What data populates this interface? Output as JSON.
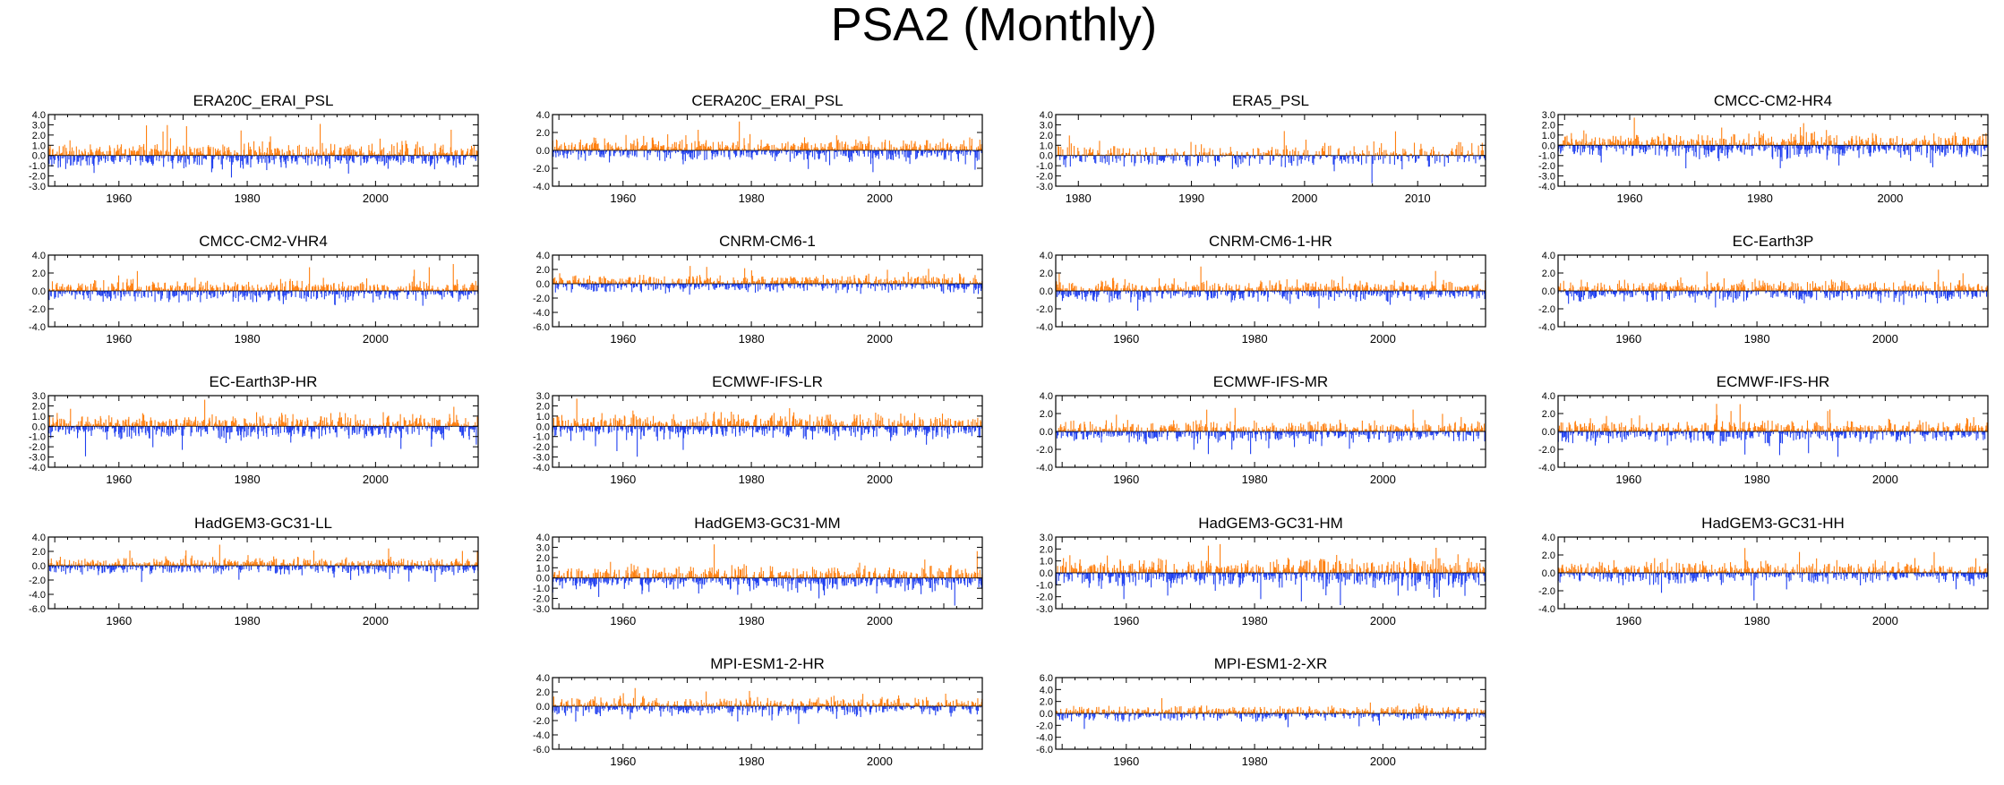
{
  "figure": {
    "title": "PSA2 (Monthly)",
    "colors": {
      "positive": "#ff7f0e",
      "negative": "#1f3ff0"
    }
  },
  "chart_data": [
    {
      "type": "bar",
      "title": "ERA20C_ERAI_PSL",
      "xlim": [
        1949,
        2016
      ],
      "ylim": [
        -3.0,
        4.0
      ],
      "yticks": [
        -3.0,
        -2.0,
        -1.0,
        0.0,
        1.0,
        2.0,
        3.0,
        4.0
      ],
      "ytick_labels": [
        "-3.0",
        "-2.0",
        "-1.0",
        "0.0",
        "1.0",
        "2.0",
        "3.0",
        "4.0"
      ],
      "xticks": [
        1960,
        1980,
        2000
      ],
      "xtick_labels": [
        "1960",
        "1980",
        "2000"
      ]
    },
    {
      "type": "bar",
      "title": "CERA20C_ERAI_PSL",
      "xlim": [
        1949,
        2016
      ],
      "ylim": [
        -4.0,
        4.0
      ],
      "yticks": [
        -4.0,
        -2.0,
        0.0,
        2.0,
        4.0
      ],
      "ytick_labels": [
        "-4.0",
        "-2.0",
        "0.0",
        "2.0",
        "4.0"
      ],
      "xticks": [
        1960,
        1980,
        2000
      ],
      "xtick_labels": [
        "1960",
        "1980",
        "2000"
      ]
    },
    {
      "type": "bar",
      "title": "ERA5_PSL",
      "xlim": [
        1978,
        2016
      ],
      "ylim": [
        -3.0,
        4.0
      ],
      "yticks": [
        -3.0,
        -2.0,
        -1.0,
        0.0,
        1.0,
        2.0,
        3.0,
        4.0
      ],
      "ytick_labels": [
        "-3.0",
        "-2.0",
        "-1.0",
        "0.0",
        "1.0",
        "2.0",
        "3.0",
        "4.0"
      ],
      "xticks": [
        1980,
        1990,
        2000,
        2010
      ],
      "xtick_labels": [
        "1980",
        "1990",
        "2000",
        "2010"
      ]
    },
    {
      "type": "bar",
      "title": "CMCC-CM2-HR4",
      "xlim": [
        1949,
        2015
      ],
      "ylim": [
        -4.0,
        3.0
      ],
      "yticks": [
        -4.0,
        -3.0,
        -2.0,
        -1.0,
        0.0,
        1.0,
        2.0,
        3.0
      ],
      "ytick_labels": [
        "-4.0",
        "-3.0",
        "-2.0",
        "-1.0",
        "0.0",
        "1.0",
        "2.0",
        "3.0"
      ],
      "xticks": [
        1960,
        1980,
        2000
      ],
      "xtick_labels": [
        "1960",
        "1980",
        "2000"
      ]
    },
    {
      "type": "bar",
      "title": "CMCC-CM2-VHR4",
      "xlim": [
        1949,
        2016
      ],
      "ylim": [
        -4.0,
        4.0
      ],
      "yticks": [
        -4.0,
        -2.0,
        0.0,
        2.0,
        4.0
      ],
      "ytick_labels": [
        "-4.0",
        "-2.0",
        "0.0",
        "2.0",
        "4.0"
      ],
      "xticks": [
        1960,
        1980,
        2000
      ],
      "xtick_labels": [
        "1960",
        "1980",
        "2000"
      ]
    },
    {
      "type": "bar",
      "title": "CNRM-CM6-1",
      "xlim": [
        1949,
        2016
      ],
      "ylim": [
        -6.0,
        4.0
      ],
      "yticks": [
        -6.0,
        -4.0,
        -2.0,
        0.0,
        2.0,
        4.0
      ],
      "ytick_labels": [
        "-6.0",
        "-4.0",
        "-2.0",
        "0.0",
        "2.0",
        "4.0"
      ],
      "xticks": [
        1960,
        1980,
        2000
      ],
      "xtick_labels": [
        "1960",
        "1980",
        "2000"
      ]
    },
    {
      "type": "bar",
      "title": "CNRM-CM6-1-HR",
      "xlim": [
        1949,
        2016
      ],
      "ylim": [
        -4.0,
        4.0
      ],
      "yticks": [
        -4.0,
        -2.0,
        0.0,
        2.0,
        4.0
      ],
      "ytick_labels": [
        "-4.0",
        "-2.0",
        "0.0",
        "2.0",
        "4.0"
      ],
      "xticks": [
        1960,
        1980,
        2000
      ],
      "xtick_labels": [
        "1960",
        "1980",
        "2000"
      ]
    },
    {
      "type": "bar",
      "title": "EC-Earth3P",
      "xlim": [
        1949,
        2016
      ],
      "ylim": [
        -4.0,
        4.0
      ],
      "yticks": [
        -4.0,
        -2.0,
        0.0,
        2.0,
        4.0
      ],
      "ytick_labels": [
        "-4.0",
        "-2.0",
        "0.0",
        "2.0",
        "4.0"
      ],
      "xticks": [
        1960,
        1980,
        2000
      ],
      "xtick_labels": [
        "1960",
        "1980",
        "2000"
      ]
    },
    {
      "type": "bar",
      "title": "EC-Earth3P-HR",
      "xlim": [
        1949,
        2016
      ],
      "ylim": [
        -4.0,
        3.0
      ],
      "yticks": [
        -4.0,
        -3.0,
        -2.0,
        -1.0,
        0.0,
        1.0,
        2.0,
        3.0
      ],
      "ytick_labels": [
        "-4.0",
        "-3.0",
        "-2.0",
        "-1.0",
        "0.0",
        "1.0",
        "2.0",
        "3.0"
      ],
      "xticks": [
        1960,
        1980,
        2000
      ],
      "xtick_labels": [
        "1960",
        "1980",
        "2000"
      ]
    },
    {
      "type": "bar",
      "title": "ECMWF-IFS-LR",
      "xlim": [
        1949,
        2016
      ],
      "ylim": [
        -4.0,
        3.0
      ],
      "yticks": [
        -4.0,
        -3.0,
        -2.0,
        -1.0,
        0.0,
        1.0,
        2.0,
        3.0
      ],
      "ytick_labels": [
        "-4.0",
        "-3.0",
        "-2.0",
        "-1.0",
        "0.0",
        "1.0",
        "2.0",
        "3.0"
      ],
      "xticks": [
        1960,
        1980,
        2000
      ],
      "xtick_labels": [
        "1960",
        "1980",
        "2000"
      ]
    },
    {
      "type": "bar",
      "title": "ECMWF-IFS-MR",
      "xlim": [
        1949,
        2016
      ],
      "ylim": [
        -4.0,
        4.0
      ],
      "yticks": [
        -4.0,
        -2.0,
        0.0,
        2.0,
        4.0
      ],
      "ytick_labels": [
        "-4.0",
        "-2.0",
        "0.0",
        "2.0",
        "4.0"
      ],
      "xticks": [
        1960,
        1980,
        2000
      ],
      "xtick_labels": [
        "1960",
        "1980",
        "2000"
      ]
    },
    {
      "type": "bar",
      "title": "ECMWF-IFS-HR",
      "xlim": [
        1949,
        2016
      ],
      "ylim": [
        -4.0,
        4.0
      ],
      "yticks": [
        -4.0,
        -2.0,
        0.0,
        2.0,
        4.0
      ],
      "ytick_labels": [
        "-4.0",
        "-2.0",
        "0.0",
        "2.0",
        "4.0"
      ],
      "xticks": [
        1960,
        1980,
        2000
      ],
      "xtick_labels": [
        "1960",
        "1980",
        "2000"
      ]
    },
    {
      "type": "bar",
      "title": "HadGEM3-GC31-LL",
      "xlim": [
        1949,
        2016
      ],
      "ylim": [
        -6.0,
        4.0
      ],
      "yticks": [
        -6.0,
        -4.0,
        -2.0,
        0.0,
        2.0,
        4.0
      ],
      "ytick_labels": [
        "-6.0",
        "-4.0",
        "-2.0",
        "0.0",
        "2.0",
        "4.0"
      ],
      "xticks": [
        1960,
        1980,
        2000
      ],
      "xtick_labels": [
        "1960",
        "1980",
        "2000"
      ]
    },
    {
      "type": "bar",
      "title": "HadGEM3-GC31-MM",
      "xlim": [
        1949,
        2016
      ],
      "ylim": [
        -3.0,
        4.0
      ],
      "yticks": [
        -3.0,
        -2.0,
        -1.0,
        0.0,
        1.0,
        2.0,
        3.0,
        4.0
      ],
      "ytick_labels": [
        "-3.0",
        "-2.0",
        "-1.0",
        "0.0",
        "1.0",
        "2.0",
        "3.0",
        "4.0"
      ],
      "xticks": [
        1960,
        1980,
        2000
      ],
      "xtick_labels": [
        "1960",
        "1980",
        "2000"
      ]
    },
    {
      "type": "bar",
      "title": "HadGEM3-GC31-HM",
      "xlim": [
        1949,
        2016
      ],
      "ylim": [
        -3.0,
        3.0
      ],
      "yticks": [
        -3.0,
        -2.0,
        -1.0,
        0.0,
        1.0,
        2.0,
        3.0
      ],
      "ytick_labels": [
        "-3.0",
        "-2.0",
        "-1.0",
        "0.0",
        "1.0",
        "2.0",
        "3.0"
      ],
      "xticks": [
        1960,
        1980,
        2000
      ],
      "xtick_labels": [
        "1960",
        "1980",
        "2000"
      ]
    },
    {
      "type": "bar",
      "title": "HadGEM3-GC31-HH",
      "xlim": [
        1949,
        2016
      ],
      "ylim": [
        -4.0,
        4.0
      ],
      "yticks": [
        -4.0,
        -2.0,
        0.0,
        2.0,
        4.0
      ],
      "ytick_labels": [
        "-4.0",
        "-2.0",
        "0.0",
        "2.0",
        "4.0"
      ],
      "xticks": [
        1960,
        1980,
        2000
      ],
      "xtick_labels": [
        "1960",
        "1980",
        "2000"
      ]
    },
    {
      "type": "bar",
      "title": "MPI-ESM1-2-HR",
      "xlim": [
        1949,
        2016
      ],
      "ylim": [
        -6.0,
        4.0
      ],
      "yticks": [
        -6.0,
        -4.0,
        -2.0,
        0.0,
        2.0,
        4.0
      ],
      "ytick_labels": [
        "-6.0",
        "-4.0",
        "-2.0",
        "0.0",
        "2.0",
        "4.0"
      ],
      "xticks": [
        1960,
        1980,
        2000
      ],
      "xtick_labels": [
        "1960",
        "1980",
        "2000"
      ]
    },
    {
      "type": "bar",
      "title": "MPI-ESM1-2-XR",
      "xlim": [
        1949,
        2016
      ],
      "ylim": [
        -6.0,
        6.0
      ],
      "yticks": [
        -6.0,
        -4.0,
        -2.0,
        0.0,
        2.0,
        4.0,
        6.0
      ],
      "ytick_labels": [
        "-6.0",
        "-4.0",
        "-2.0",
        "0.0",
        "2.0",
        "4.0",
        "6.0"
      ],
      "xticks": [
        1960,
        1980,
        2000
      ],
      "xtick_labels": [
        "1960",
        "1980",
        "2000"
      ]
    }
  ]
}
